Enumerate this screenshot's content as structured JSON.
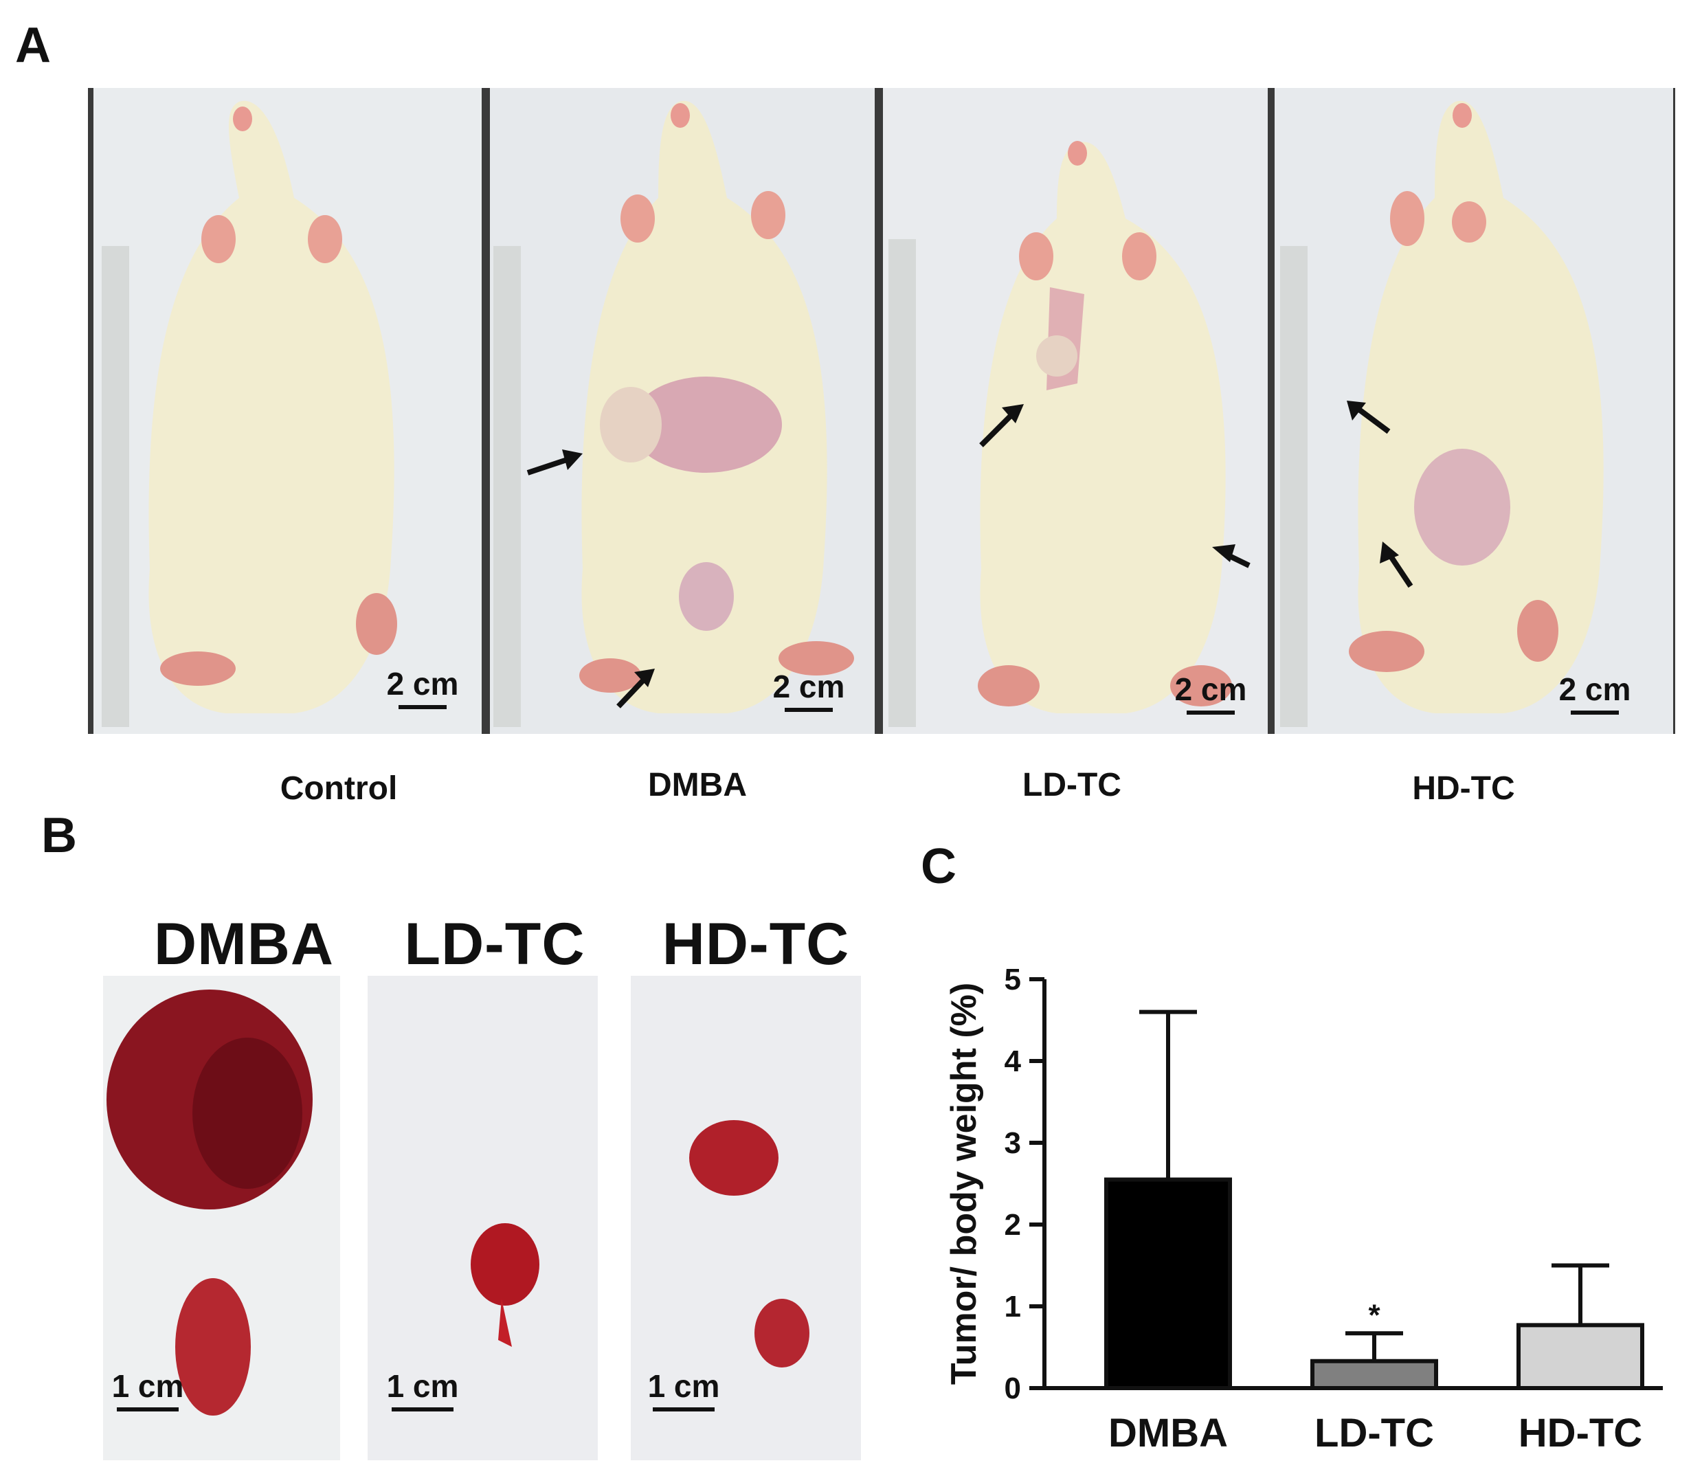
{
  "panels": {
    "a": {
      "letter": "A",
      "groups": [
        "Control",
        "DMBA",
        "LD-TC",
        "HD-TC"
      ],
      "scale_label": "2 cm"
    },
    "b": {
      "letter": "B",
      "groups": [
        "DMBA",
        "LD-TC",
        "HD-TC"
      ],
      "scale_label": "1 cm"
    },
    "c": {
      "letter": "C"
    }
  },
  "colors": {
    "dmba_bar": "#000000",
    "ldtc_bar": "#808080",
    "hdtc_bar": "#d3d3d3",
    "rat_fur": "#f3efd2",
    "photo_bg": "#e8ecef",
    "tumor": "#8a1520",
    "arrow": "#111111"
  },
  "chart_data": {
    "type": "bar",
    "categories": [
      "DMBA",
      "LD-TC",
      "HD-TC"
    ],
    "values": [
      2.55,
      0.33,
      0.77
    ],
    "error_upper": [
      4.6,
      0.67,
      1.5
    ],
    "significance": [
      "",
      "*",
      ""
    ],
    "ylabel": "Tumor/ body weight (%)",
    "ylim": [
      0,
      5
    ],
    "yticks": [
      "0",
      "1",
      "2",
      "3",
      "4",
      "5"
    ],
    "grid": false
  }
}
